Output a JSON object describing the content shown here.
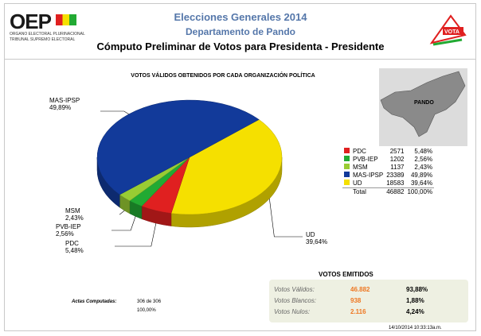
{
  "header": {
    "title": "Elecciones Generales  2014",
    "subtitle": "Departamento de Pando",
    "heading": "Cómputo Preliminar de Votos para  Presidenta - Presidente",
    "logo_text": "OEP",
    "logo_sub1": "ORGANO ELECTORAL PLURINACIONAL",
    "logo_sub2": "TRIBUNAL SUPREMO ELECTORAL",
    "vota_text": "VOTA"
  },
  "map_label": "PANDO",
  "chart_data": {
    "type": "pie",
    "title": "VOTOS VÁLIDOS OBTENIDOS POR CADA ORGANIZACIÓN POLÍTICA",
    "slices": [
      {
        "name": "UD",
        "votes": 18583,
        "percent": "39,64%",
        "value": 39.64,
        "color": "#f5e000"
      },
      {
        "name": "PDC",
        "votes": 2571,
        "percent": "5,48%",
        "value": 5.48,
        "color": "#e02020"
      },
      {
        "name": "PVB-IEP",
        "votes": 1202,
        "percent": "2,56%",
        "value": 2.56,
        "color": "#22aa33"
      },
      {
        "name": "MSM",
        "votes": 1137,
        "percent": "2,43%",
        "value": 2.43,
        "color": "#99cc33"
      },
      {
        "name": "MAS-IPSP",
        "votes": 23389,
        "percent": "49,89%",
        "value": 49.89,
        "color": "#123a9a"
      }
    ],
    "total_label": "Total",
    "total_votes": 46882,
    "total_percent": "100,00%"
  },
  "emitidos": {
    "title": "VOTOS EMITIDOS",
    "rows": [
      {
        "label": "Votos Válidos:",
        "value": "46.882",
        "percent": "93,88%"
      },
      {
        "label": "Votos Blancos:",
        "value": "938",
        "percent": "1,88%"
      },
      {
        "label": "Votos Nulos:",
        "value": "2.116",
        "percent": "4,24%"
      }
    ]
  },
  "actas": {
    "label": "Actas Computadas:",
    "value": "306 de 306",
    "percent": "100,00%"
  },
  "timestamp": "14/10/2014 10:33:13a.m."
}
